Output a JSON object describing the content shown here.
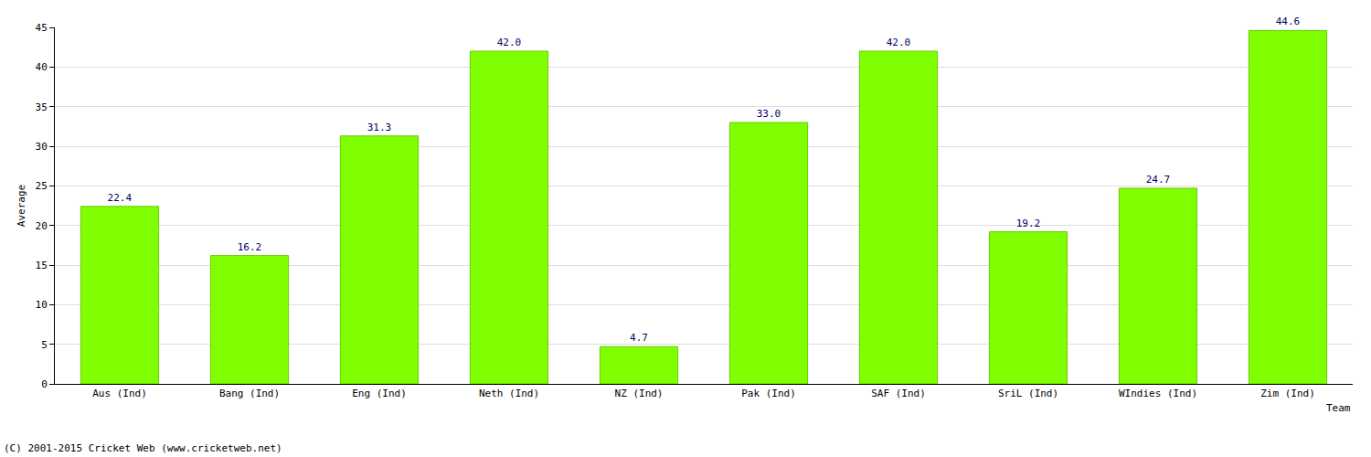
{
  "chart_data": {
    "type": "bar",
    "categories": [
      "Aus (Ind)",
      "Bang (Ind)",
      "Eng (Ind)",
      "Neth (Ind)",
      "NZ (Ind)",
      "Pak (Ind)",
      "SAF (Ind)",
      "SriL (Ind)",
      "WIndies (Ind)",
      "Zim (Ind)"
    ],
    "values": [
      22.4,
      16.2,
      31.3,
      42.0,
      4.7,
      33.0,
      42.0,
      19.2,
      24.7,
      44.6
    ],
    "value_labels": [
      "22.4",
      "16.2",
      "31.3",
      "42.0",
      "4.7",
      "33.0",
      "42.0",
      "19.2",
      "24.7",
      "44.6"
    ],
    "color": "#80ff00",
    "x_label": "Team",
    "y_label": "Average",
    "annotations": [
      "(C) 2001-2015 Cricket Web (www.cricketweb.net)"
    ],
    "ylim": [
      0,
      45
    ],
    "yticks": [
      0,
      5,
      10,
      15,
      20,
      25,
      30,
      35,
      40,
      45
    ],
    "grid": true,
    "data_labels": true
  }
}
